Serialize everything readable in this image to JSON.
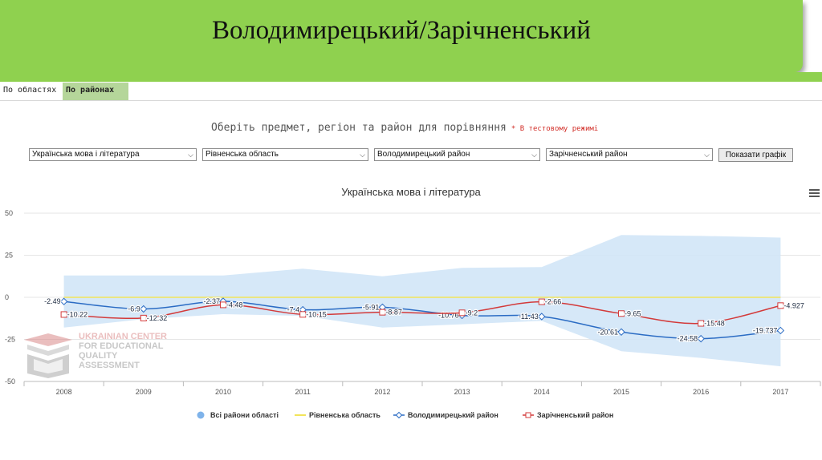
{
  "header": {
    "title": "Володимирецький/Зарічненський"
  },
  "tabs": [
    {
      "label": "По областях"
    },
    {
      "label": "По районах"
    }
  ],
  "prompt": {
    "text": "Оберіть предмет, регіон та район для порівняння",
    "note": "* В тестовому режимі"
  },
  "filters": {
    "subject": "Українська мова і література",
    "region": "Рівненська область",
    "district1": "Володимирецький район",
    "district2": "Зарічненський район",
    "show_button": "Показати графік"
  },
  "watermark": {
    "lines": [
      "UKRAINIAN CENTER",
      "FOR EDUCATIONAL",
      "QUALITY",
      "ASSESSMENT"
    ]
  },
  "colors": {
    "accent_green": "#8fd14f",
    "tab_active": "#b5d69a",
    "band": "#cfe4f7",
    "region_line": "#f2e45a",
    "district1": "#2b6cc4",
    "district2": "#d33a3a"
  },
  "chart_data": {
    "type": "line",
    "title": "Українська мова і література",
    "x": [
      "2008",
      "2009",
      "2010",
      "2011",
      "2012",
      "2013",
      "2014",
      "2015",
      "2016",
      "2017"
    ],
    "y_ticks": [
      "50",
      "25",
      "0",
      "-25",
      "-50"
    ],
    "ylim": [
      -50,
      50
    ],
    "band": {
      "name": "Всі райони області",
      "upper": [
        13,
        13,
        13,
        17,
        12.5,
        17.5,
        18,
        37,
        36.5,
        35.5
      ],
      "lower": [
        -18,
        -13,
        -10,
        -11,
        -18,
        -16,
        -14,
        -32,
        -36,
        -41
      ]
    },
    "series": [
      {
        "name": "Рівненська область",
        "values": [
          0,
          0,
          0,
          0,
          0,
          0,
          0,
          0,
          0,
          0
        ],
        "labels": [
          "",
          "",
          "",
          "",
          "",
          "",
          "",
          "",
          "",
          ""
        ]
      },
      {
        "name": "Володимирецький район",
        "values": [
          -2.49,
          -6.9,
          -2.37,
          -7.4,
          -5.91,
          -10.76,
          -11.43,
          -20.61,
          -24.58,
          -19.737
        ],
        "labels": [
          "-2.49",
          "-6.9",
          "-2.37",
          "-7.4",
          "-5.91",
          "-10.76",
          "-11.43",
          "-20.61",
          "-24.58",
          "-19.737"
        ]
      },
      {
        "name": "Зарічненський район",
        "values": [
          -10.22,
          -12.32,
          -4.48,
          -10.15,
          -8.87,
          -9.2,
          -2.66,
          -9.65,
          -15.48,
          -4.927
        ],
        "labels": [
          "-10.22",
          "-12.32",
          "-4.48",
          "-10.15",
          "-8.87",
          "-9.2",
          "-2.66",
          "-9.65",
          "-15.48",
          "-4.927"
        ]
      }
    ],
    "legend": [
      "Всі райони області",
      "Рівненська область",
      "Володимирецький район",
      "Зарічненський район"
    ],
    "legend_position": "bottom"
  }
}
